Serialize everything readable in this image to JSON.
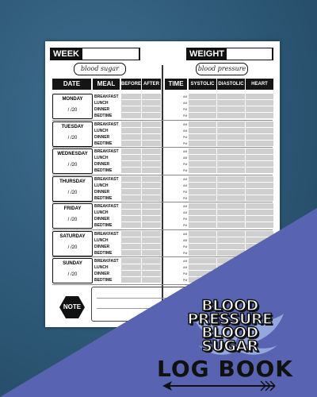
{
  "page": {
    "week_label": "WEEK",
    "weight_label": "WEIGHT",
    "blood_sugar_script": "blood sugar",
    "blood_pressure_script": "blood pressure",
    "headers": {
      "date": "DATE",
      "meal": "MEAL",
      "before": "BEFORE",
      "after": "AFTER",
      "time": "TIME",
      "systolic": "SYSTOLIC",
      "diastolic": "DIASTOLIC",
      "heart_rate": "HEART RATE"
    },
    "meals": [
      "BREAKFAST",
      "LUNCH",
      "DINNER",
      "BEDTIME"
    ],
    "ampm": [
      "AM",
      "AM",
      "PM",
      "PM"
    ],
    "days": [
      {
        "name": "MONDAY",
        "date": "/ /20"
      },
      {
        "name": "TUESDAY",
        "date": "/ /20"
      },
      {
        "name": "WEDNESDAY",
        "date": "/ /20"
      },
      {
        "name": "THURSDAY",
        "date": "/ /20"
      },
      {
        "name": "FRIDAY",
        "date": "/ /20"
      },
      {
        "name": "SATURDAY",
        "date": "/ /20"
      },
      {
        "name": "SUNDAY",
        "date": "/ /20"
      }
    ],
    "note_label": "NOTE"
  },
  "cover": {
    "title_line1": "BLOOD",
    "title_line2": "PRESSURE",
    "title_line3": "BLOOD",
    "title_line4": "SUGAR",
    "subtitle": "LOG BOOK",
    "colors": {
      "background": "#2f5d7c",
      "accent": "#5864b1"
    },
    "icons": [
      "winged-emblem-icon",
      "arrow-icon"
    ]
  }
}
